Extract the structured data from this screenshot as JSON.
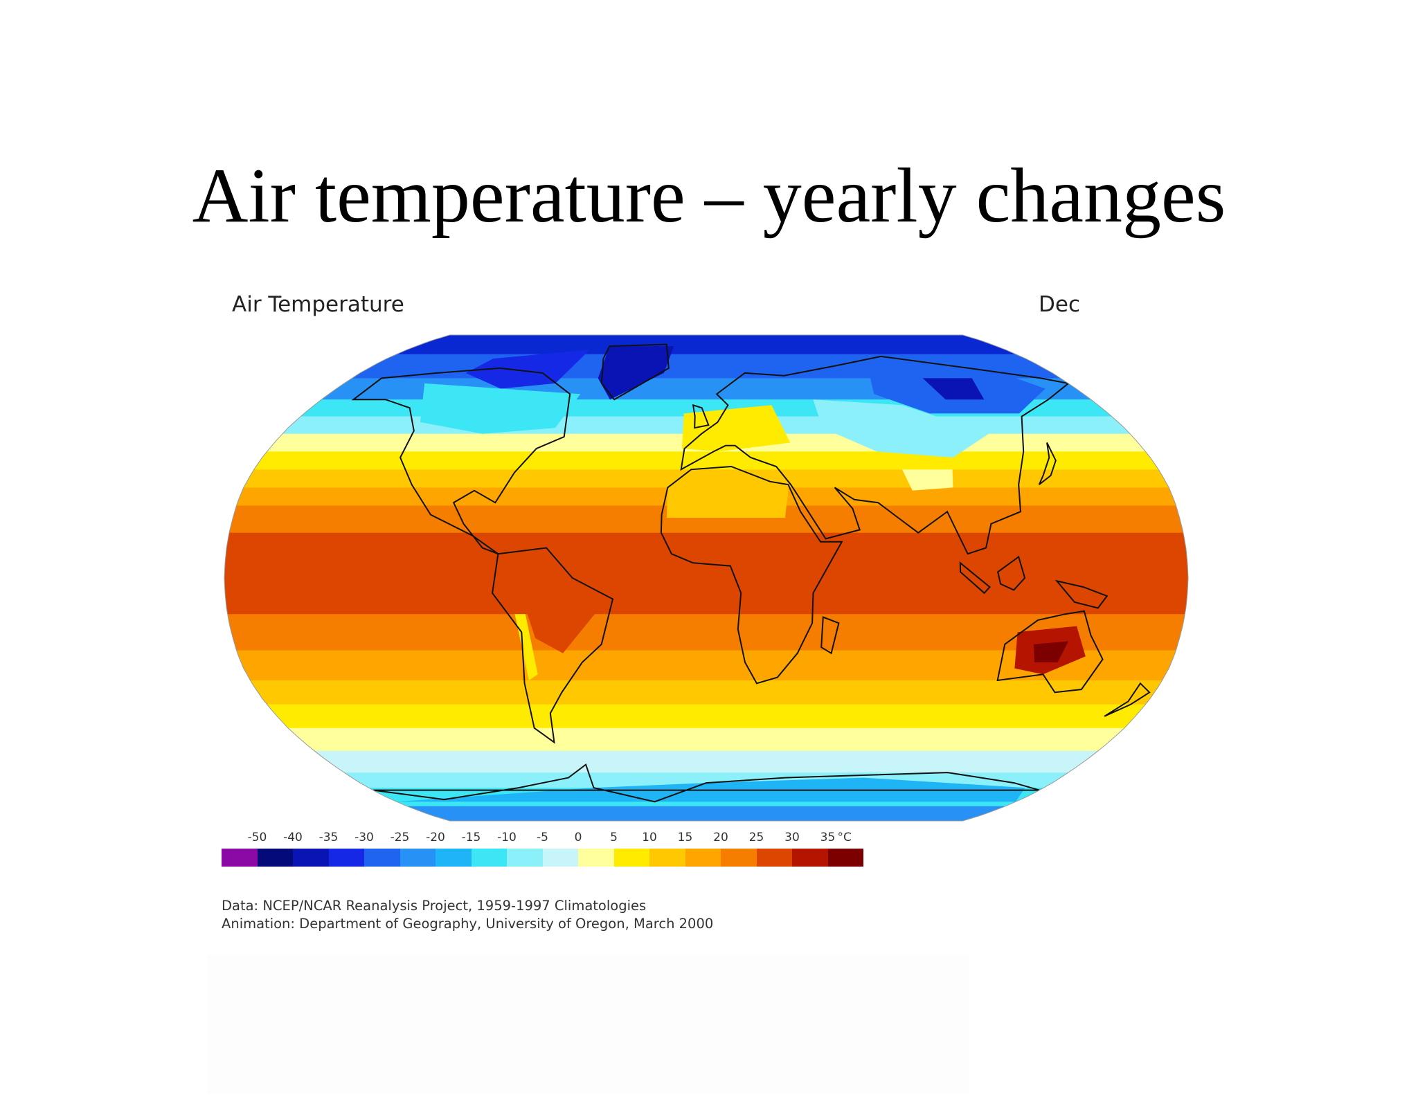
{
  "slide": {
    "title": "Air temperature – yearly changes"
  },
  "map": {
    "title": "Air Temperature",
    "month": "Dec",
    "projection": "robinson",
    "scale": {
      "ticks": [
        "-50",
        "-40",
        "-35",
        "-30",
        "-25",
        "-20",
        "-15",
        "-10",
        "-5",
        "0",
        "5",
        "10",
        "15",
        "20",
        "25",
        "30",
        "35"
      ],
      "unit": "°C",
      "colors": [
        "#8b0aa5",
        "#050a7a",
        "#0a14b4",
        "#1428e6",
        "#1e64f0",
        "#2891f5",
        "#1eb4f5",
        "#3ce6f5",
        "#8cf0fa",
        "#c8f5fa",
        "#ffff9b",
        "#ffeb00",
        "#ffc800",
        "#ffa500",
        "#f57d00",
        "#dc4600",
        "#b41400",
        "#7d0000"
      ]
    },
    "bands": [
      {
        "lat": 90,
        "color": "#0a28d2"
      },
      {
        "lat": 78,
        "color": "#1e64f0"
      },
      {
        "lat": 68,
        "color": "#2891f5"
      },
      {
        "lat": 60,
        "color": "#3ce6f5"
      },
      {
        "lat": 54,
        "color": "#8cf0fa"
      },
      {
        "lat": 48,
        "color": "#ffff9b"
      },
      {
        "lat": 42,
        "color": "#ffeb00"
      },
      {
        "lat": 36,
        "color": "#ffc800"
      },
      {
        "lat": 30,
        "color": "#ffa500"
      },
      {
        "lat": 24,
        "color": "#f57d00"
      },
      {
        "lat": 15,
        "color": "#dc4600"
      },
      {
        "lat": -12,
        "color": "#f57d00"
      },
      {
        "lat": -24,
        "color": "#ffa500"
      },
      {
        "lat": -34,
        "color": "#ffc800"
      },
      {
        "lat": -42,
        "color": "#ffeb00"
      },
      {
        "lat": -50,
        "color": "#ffff9b"
      },
      {
        "lat": -58,
        "color": "#c8f5fa"
      },
      {
        "lat": -66,
        "color": "#8cf0fa"
      },
      {
        "lat": -72,
        "color": "#3ce6f5"
      },
      {
        "lat": -80,
        "color": "#2891f5"
      }
    ],
    "regions": [
      {
        "name": "greenland-cold",
        "color": "#0a14b4",
        "points": [
          [
            -60,
            82
          ],
          [
            -20,
            82
          ],
          [
            -22,
            70
          ],
          [
            -45,
            60
          ],
          [
            -55,
            68
          ]
        ]
      },
      {
        "name": "arctic-canada-cold",
        "color": "#1428e6",
        "points": [
          [
            -120,
            76
          ],
          [
            -70,
            80
          ],
          [
            -75,
            66
          ],
          [
            -100,
            64
          ],
          [
            -125,
            70
          ]
        ]
      },
      {
        "name": "canada-cool",
        "color": "#3ce6f5",
        "points": [
          [
            -140,
            66
          ],
          [
            -60,
            62
          ],
          [
            -65,
            50
          ],
          [
            -95,
            48
          ],
          [
            -125,
            52
          ]
        ]
      },
      {
        "name": "siberia-cold",
        "color": "#1e64f0",
        "points": [
          [
            90,
            76
          ],
          [
            150,
            72
          ],
          [
            165,
            64
          ],
          [
            140,
            55
          ],
          [
            100,
            55
          ],
          [
            80,
            62
          ]
        ]
      },
      {
        "name": "siberia-core",
        "color": "#0a14b4",
        "points": [
          [
            110,
            68
          ],
          [
            135,
            68
          ],
          [
            130,
            60
          ],
          [
            112,
            60
          ]
        ]
      },
      {
        "name": "asia-cool",
        "color": "#8cf0fa",
        "points": [
          [
            50,
            60
          ],
          [
            90,
            58
          ],
          [
            120,
            48
          ],
          [
            100,
            40
          ],
          [
            70,
            42
          ],
          [
            50,
            50
          ]
        ]
      },
      {
        "name": "tibet-cool",
        "color": "#ffff9b",
        "points": [
          [
            78,
            36
          ],
          [
            98,
            36
          ],
          [
            96,
            30
          ],
          [
            80,
            29
          ]
        ]
      },
      {
        "name": "europe-warm",
        "color": "#ffeb00",
        "points": [
          [
            -10,
            55
          ],
          [
            30,
            58
          ],
          [
            35,
            45
          ],
          [
            5,
            42
          ],
          [
            -10,
            43
          ]
        ]
      },
      {
        "name": "australia-hot",
        "color": "#b41400",
        "points": [
          [
            118,
            -18
          ],
          [
            140,
            -16
          ],
          [
            146,
            -26
          ],
          [
            132,
            -32
          ],
          [
            120,
            -30
          ]
        ]
      },
      {
        "name": "australia-core",
        "color": "#7d0000",
        "points": [
          [
            125,
            -22
          ],
          [
            138,
            -21
          ],
          [
            136,
            -28
          ],
          [
            127,
            -28
          ]
        ]
      },
      {
        "name": "sahara-warm",
        "color": "#ffc800",
        "points": [
          [
            -15,
            30
          ],
          [
            32,
            30
          ],
          [
            30,
            20
          ],
          [
            -15,
            20
          ]
        ]
      },
      {
        "name": "south-america-hot",
        "color": "#dc4600",
        "points": [
          [
            -72,
            2
          ],
          [
            -50,
            2
          ],
          [
            -40,
            -10
          ],
          [
            -55,
            -25
          ],
          [
            -65,
            -20
          ]
        ]
      },
      {
        "name": "andes-cool",
        "color": "#ffeb00",
        "points": [
          [
            -72,
            -12
          ],
          [
            -68,
            -12
          ],
          [
            -66,
            -32
          ],
          [
            -70,
            -34
          ]
        ]
      },
      {
        "name": "antarctica-coast",
        "color": "#1eb4f5",
        "points": [
          [
            -180,
            -78
          ],
          [
            -60,
            -72
          ],
          [
            0,
            -70
          ],
          [
            80,
            -68
          ],
          [
            170,
            -72
          ],
          [
            180,
            -78
          ]
        ]
      }
    ],
    "coastlines": [
      {
        "name": "north-america",
        "points": [
          [
            -165,
            68
          ],
          [
            -140,
            70
          ],
          [
            -110,
            72
          ],
          [
            -85,
            70
          ],
          [
            -65,
            62
          ],
          [
            -60,
            47
          ],
          [
            -70,
            43
          ],
          [
            -76,
            35
          ],
          [
            -81,
            25
          ],
          [
            -90,
            29
          ],
          [
            -97,
            25
          ],
          [
            -92,
            18
          ],
          [
            -84,
            10
          ],
          [
            -78,
            8
          ],
          [
            -88,
            14
          ],
          [
            -105,
            21
          ],
          [
            -115,
            31
          ],
          [
            -124,
            40
          ],
          [
            -125,
            49
          ],
          [
            -135,
            57
          ],
          [
            -150,
            60
          ],
          [
            -165,
            60
          ]
        ]
      },
      {
        "name": "greenland",
        "points": [
          [
            -60,
            82
          ],
          [
            -25,
            83
          ],
          [
            -20,
            72
          ],
          [
            -43,
            60
          ],
          [
            -52,
            66
          ],
          [
            -58,
            76
          ]
        ]
      },
      {
        "name": "south-america",
        "points": [
          [
            -78,
            8
          ],
          [
            -60,
            10
          ],
          [
            -50,
            0
          ],
          [
            -35,
            -7
          ],
          [
            -40,
            -22
          ],
          [
            -48,
            -28
          ],
          [
            -58,
            -38
          ],
          [
            -65,
            -45
          ],
          [
            -68,
            -55
          ],
          [
            -74,
            -50
          ],
          [
            -72,
            -35
          ],
          [
            -70,
            -18
          ],
          [
            -80,
            -5
          ]
        ]
      },
      {
        "name": "europe-asia",
        "points": [
          [
            -10,
            36
          ],
          [
            -9,
            43
          ],
          [
            -2,
            48
          ],
          [
            5,
            52
          ],
          [
            10,
            58
          ],
          [
            5,
            62
          ],
          [
            20,
            70
          ],
          [
            40,
            69
          ],
          [
            70,
            73
          ],
          [
            100,
            77
          ],
          [
            140,
            72
          ],
          [
            170,
            68
          ],
          [
            180,
            66
          ],
          [
            160,
            60
          ],
          [
            140,
            54
          ],
          [
            130,
            42
          ],
          [
            122,
            31
          ],
          [
            120,
            22
          ],
          [
            108,
            18
          ],
          [
            105,
            10
          ],
          [
            98,
            8
          ],
          [
            92,
            22
          ],
          [
            80,
            15
          ],
          [
            73,
            20
          ],
          [
            66,
            25
          ],
          [
            57,
            26
          ],
          [
            50,
            30
          ],
          [
            56,
            23
          ],
          [
            58,
            16
          ],
          [
            45,
            13
          ],
          [
            35,
            28
          ],
          [
            33,
            31
          ],
          [
            28,
            37
          ],
          [
            18,
            40
          ],
          [
            12,
            44
          ],
          [
            8,
            44
          ],
          [
            3,
            42
          ]
        ]
      },
      {
        "name": "africa",
        "points": [
          [
            -17,
            21
          ],
          [
            -15,
            30
          ],
          [
            -6,
            36
          ],
          [
            10,
            37
          ],
          [
            25,
            32
          ],
          [
            32,
            31
          ],
          [
            36,
            22
          ],
          [
            43,
            12
          ],
          [
            51,
            12
          ],
          [
            40,
            -5
          ],
          [
            40,
            -15
          ],
          [
            35,
            -25
          ],
          [
            28,
            -33
          ],
          [
            20,
            -35
          ],
          [
            15,
            -28
          ],
          [
            12,
            -17
          ],
          [
            13,
            -5
          ],
          [
            9,
            4
          ],
          [
            -5,
            5
          ],
          [
            -13,
            8
          ],
          [
            -17,
            15
          ]
        ]
      },
      {
        "name": "australia",
        "points": [
          [
            114,
            -22
          ],
          [
            125,
            -14
          ],
          [
            135,
            -12
          ],
          [
            142,
            -11
          ],
          [
            146,
            -19
          ],
          [
            153,
            -27
          ],
          [
            150,
            -37
          ],
          [
            140,
            -38
          ],
          [
            132,
            -32
          ],
          [
            115,
            -34
          ]
        ]
      },
      {
        "name": "antarctica",
        "points": [
          [
            -180,
            -73
          ],
          [
            -150,
            -77
          ],
          [
            -100,
            -72
          ],
          [
            -70,
            -68
          ],
          [
            -58,
            -63
          ],
          [
            -60,
            -72
          ],
          [
            -30,
            -78
          ],
          [
            0,
            -70
          ],
          [
            40,
            -68
          ],
          [
            80,
            -67
          ],
          [
            120,
            -66
          ],
          [
            160,
            -70
          ],
          [
            180,
            -73
          ]
        ]
      },
      {
        "name": "madagascar",
        "points": [
          [
            44,
            -13
          ],
          [
            50,
            -15
          ],
          [
            48,
            -25
          ],
          [
            44,
            -23
          ]
        ]
      },
      {
        "name": "uk",
        "points": [
          [
            -5,
            50
          ],
          [
            1,
            51
          ],
          [
            -2,
            57
          ],
          [
            -6,
            58
          ],
          [
            -5,
            54
          ]
        ]
      },
      {
        "name": "japan",
        "points": [
          [
            130,
            31
          ],
          [
            136,
            34
          ],
          [
            141,
            39
          ],
          [
            142,
            45
          ],
          [
            139,
            40
          ],
          [
            133,
            34
          ]
        ]
      },
      {
        "name": "new-zealand",
        "points": [
          [
            172,
            -35
          ],
          [
            178,
            -38
          ],
          [
            174,
            -42
          ],
          [
            167,
            -46
          ],
          [
            172,
            -41
          ]
        ]
      },
      {
        "name": "borneo",
        "points": [
          [
            109,
            2
          ],
          [
            117,
            7
          ],
          [
            119,
            0
          ],
          [
            115,
            -4
          ],
          [
            110,
            -2
          ]
        ]
      },
      {
        "name": "new-guinea",
        "points": [
          [
            131,
            -1
          ],
          [
            141,
            -3
          ],
          [
            150,
            -6
          ],
          [
            147,
            -10
          ],
          [
            138,
            -8
          ]
        ]
      },
      {
        "name": "sumatra",
        "points": [
          [
            95,
            5
          ],
          [
            106,
            -3
          ],
          [
            104,
            -5
          ],
          [
            95,
            2
          ]
        ]
      }
    ]
  },
  "credits": {
    "data": "Data:  NCEP/NCAR Reanalysis Project, 1959-1997 Climatologies",
    "animation": "Animation:  Department of Geography, University of Oregon, March 2000"
  }
}
